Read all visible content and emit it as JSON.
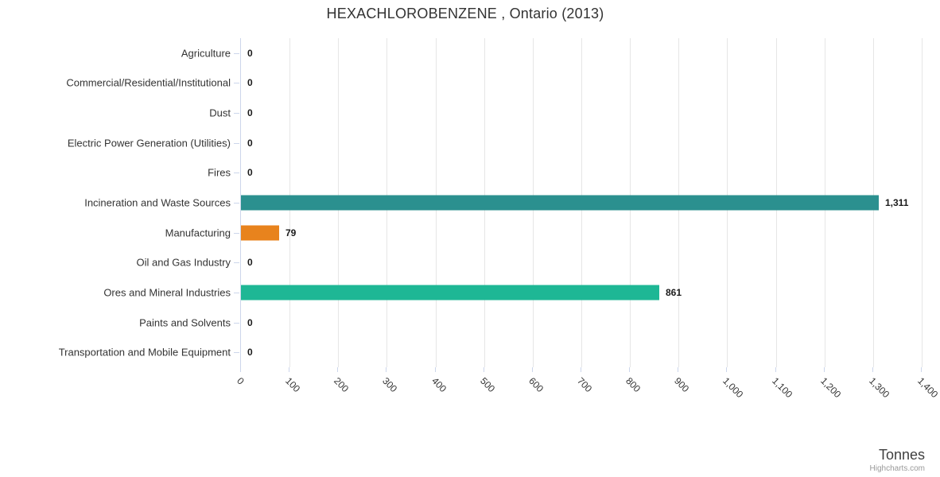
{
  "credit": "Highcharts.com",
  "chart_data": {
    "type": "bar",
    "orientation": "horizontal",
    "title": "HEXACHLOROBENZENE , Ontario (2013)",
    "xlabel": "Tonnes",
    "ylabel": "",
    "categories": [
      "Agriculture",
      "Commercial/Residential/Institutional",
      "Dust",
      "Electric Power Generation (Utilities)",
      "Fires",
      "Incineration and Waste Sources",
      "Manufacturing",
      "Oil and Gas Industry",
      "Ores and Mineral Industries",
      "Paints and Solvents",
      "Transportation and Mobile Equipment"
    ],
    "values": [
      0,
      0,
      0,
      0,
      0,
      1311,
      79,
      0,
      861,
      0,
      0
    ],
    "value_labels": [
      "0",
      "0",
      "0",
      "0",
      "0",
      "1,311",
      "79",
      "0",
      "861",
      "0",
      "0"
    ],
    "bar_colors": [
      null,
      null,
      null,
      null,
      null,
      "#2b908f",
      "#e8831d",
      null,
      "#1eb795",
      null,
      null
    ],
    "xlim": [
      0,
      1400
    ],
    "tick_interval": 100,
    "tick_labels": [
      "0",
      "100",
      "200",
      "300",
      "400",
      "500",
      "600",
      "700",
      "800",
      "900",
      "1,000",
      "1,100",
      "1,200",
      "1,300",
      "1,400"
    ],
    "grid": true,
    "legend": false,
    "colors": {
      "grid": "#e6e6e6",
      "axis_line": "#ccd6eb",
      "text": "#333333",
      "value_label": "#1a1a1a"
    }
  }
}
